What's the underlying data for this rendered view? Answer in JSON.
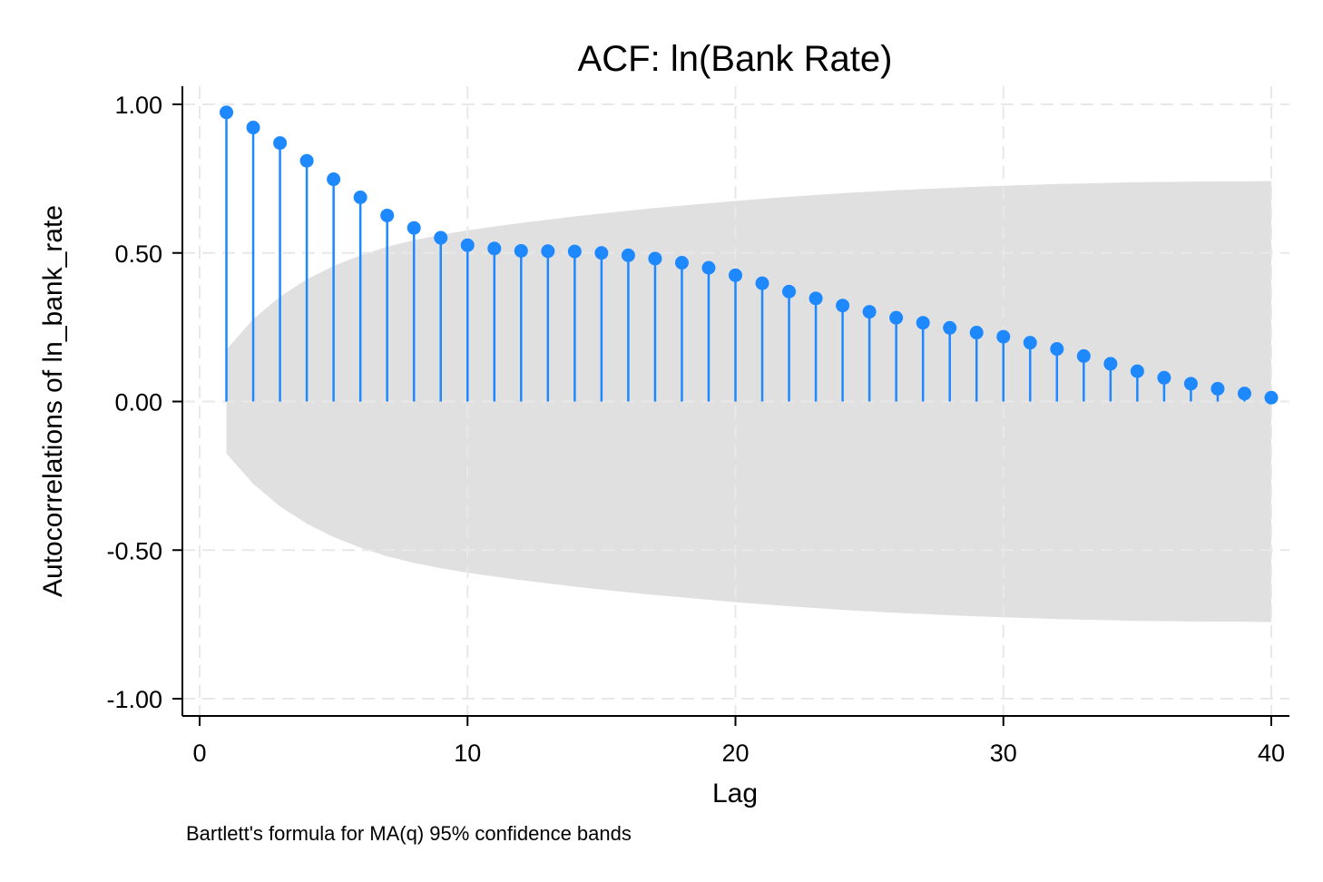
{
  "chart_data": {
    "type": "stem",
    "title": "ACF: ln(Bank Rate)",
    "xlabel": "Lag",
    "ylabel": "Autocorrelations of ln_bank_rate",
    "note": "Bartlett's formula for MA(q) 95% confidence bands",
    "xlim": [
      0,
      40
    ],
    "ylim": [
      -1,
      1
    ],
    "x_ticks": [
      0,
      10,
      20,
      30,
      40
    ],
    "x_tick_labels": [
      "0",
      "10",
      "20",
      "30",
      "40"
    ],
    "y_ticks": [
      1,
      0.5,
      0,
      -0.5,
      -1
    ],
    "y_tick_labels": [
      "1.00",
      "0.50",
      "0.00",
      "-0.50",
      "-1.00"
    ],
    "grid": true,
    "lags": [
      1,
      2,
      3,
      4,
      5,
      6,
      7,
      8,
      9,
      10,
      11,
      12,
      13,
      14,
      15,
      16,
      17,
      18,
      19,
      20,
      21,
      22,
      23,
      24,
      25,
      26,
      27,
      28,
      29,
      30,
      31,
      32,
      33,
      34,
      35,
      36,
      37,
      38,
      39,
      40
    ],
    "acf": [
      0.973,
      0.922,
      0.87,
      0.81,
      0.748,
      0.687,
      0.626,
      0.584,
      0.551,
      0.526,
      0.515,
      0.507,
      0.506,
      0.505,
      0.5,
      0.492,
      0.481,
      0.467,
      0.45,
      0.425,
      0.398,
      0.37,
      0.347,
      0.323,
      0.302,
      0.282,
      0.265,
      0.248,
      0.232,
      0.218,
      0.198,
      0.177,
      0.153,
      0.127,
      0.102,
      0.08,
      0.06,
      0.043,
      0.027,
      0.013
    ],
    "conf_band_upper": [
      0.175,
      0.277,
      0.353,
      0.411,
      0.456,
      0.492,
      0.521,
      0.543,
      0.561,
      0.576,
      0.589,
      0.601,
      0.612,
      0.623,
      0.633,
      0.642,
      0.651,
      0.659,
      0.667,
      0.675,
      0.682,
      0.689,
      0.695,
      0.701,
      0.706,
      0.711,
      0.715,
      0.719,
      0.723,
      0.726,
      0.729,
      0.732,
      0.734,
      0.736,
      0.738,
      0.739,
      0.74,
      0.741,
      0.741,
      0.742
    ],
    "colors": {
      "stem": "#1e88ff",
      "band": "#e0e0e0"
    }
  }
}
